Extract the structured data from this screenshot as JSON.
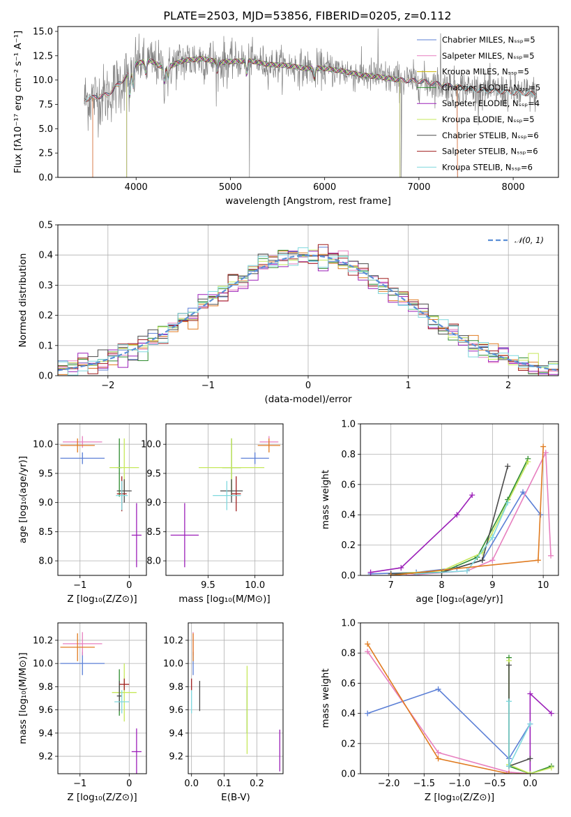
{
  "figure_title": "PLATE=2503, MJD=53856, FIBERID=0205, z=0.112",
  "colors": {
    "chabrier_miles": "#5b7fd6",
    "salpeter_miles": "#e77fbf",
    "kroupa_miles": "#c9b300",
    "chabrier_elodie": "#2e8b2e",
    "salpeter_elodie": "#9b1fb8",
    "kroupa_elodie": "#c6e85a",
    "chabrier_stelib": "#4a4a4a",
    "salpeter_stelib": "#a01e1e",
    "kroupa_stelib": "#7fd8de",
    "data": "#808080",
    "orange": "#e07b20",
    "normal": "#5b8fd6"
  },
  "chart_data": [
    {
      "id": "spectrum",
      "type": "line",
      "title": "PLATE=2503, MJD=53856, FIBERID=0205, z=0.112",
      "xlabel": "wavelength [Angstrom, rest frame]",
      "ylabel": "Flux [fλ10⁻¹⁷ erg cm⁻² s⁻¹ A⁻¹]",
      "xlim": [
        3170,
        8480
      ],
      "ylim": [
        0,
        15.5
      ],
      "xticks": [
        4000,
        5000,
        6000,
        7000,
        8000
      ],
      "yticks": [
        0.0,
        2.5,
        5.0,
        7.5,
        10.0,
        12.5,
        15.0
      ],
      "xtick_labels": [
        "4000",
        "5000",
        "6000",
        "7000",
        "8000"
      ],
      "ytick_labels": [
        "0.0",
        "2.5",
        "5.0",
        "7.5",
        "10.0",
        "12.5",
        "15.0"
      ],
      "grid": false,
      "legend_position": "top-right",
      "legend": [
        "Chabrier MILES, Nₛₛₚ=5",
        "Salpeter MILES, Nₛₛₚ=5",
        "Kroupa MILES, Nₛₛₚ=5",
        "Chabrier ELODIE, Nₛₛₚ=5",
        "Salpeter ELODIE, Nₛₛₚ=4",
        "Kroupa ELODIE, Nₛₛₚ=5",
        "Chabrier STELIB, Nₛₛₚ=6",
        "Salpeter STELIB, Nₛₛₚ=6",
        "Kroupa STELIB, Nₛₛₚ=6"
      ],
      "continuum": {
        "x": [
          3450,
          3700,
          3900,
          4000,
          4150,
          4300,
          4500,
          4700,
          4900,
          5000,
          5200,
          5400,
          5600,
          5800,
          6000,
          6200,
          6400,
          6600,
          6800,
          7000,
          7200,
          7400,
          7600,
          7800,
          8000,
          8250
        ],
        "y": [
          8.0,
          8.5,
          10.4,
          11.7,
          12.0,
          11.2,
          12.0,
          12.2,
          11.8,
          11.9,
          12.0,
          11.6,
          11.5,
          11.2,
          11.2,
          10.9,
          10.5,
          10.3,
          10.0,
          9.9,
          9.6,
          9.3,
          9.0,
          8.9,
          8.7,
          8.6
        ]
      },
      "model_extents": {
        "Chabrier MILES": [
          3540,
          7410
        ],
        "Salpeter MILES": [
          3540,
          7410
        ],
        "Kroupa MILES": [
          3540,
          7410
        ],
        "Chabrier ELODIE": [
          3900,
          6800
        ],
        "Salpeter ELODIE": [
          3900,
          6800
        ],
        "Kroupa ELODIE": [
          3900,
          6800
        ],
        "Chabrier STELIB": [
          3450,
          8250
        ],
        "Salpeter STELIB": [
          3450,
          8250
        ],
        "Kroupa STELIB": [
          3450,
          8250
        ]
      }
    },
    {
      "id": "residuals",
      "type": "step",
      "xlabel": "(data-model)/error",
      "ylabel": "Normed distribution",
      "xlim": [
        -2.5,
        2.5
      ],
      "ylim": [
        0,
        0.5
      ],
      "xticks": [
        -2,
        -1,
        0,
        1,
        2
      ],
      "yticks": [
        0.0,
        0.1,
        0.2,
        0.3,
        0.4,
        0.5
      ],
      "xtick_labels": [
        "−2",
        "−1",
        "0",
        "1",
        "2"
      ],
      "ytick_labels": [
        "0.0",
        "0.1",
        "0.2",
        "0.3",
        "0.4",
        "0.5"
      ],
      "grid": true,
      "bin_width": 0.1,
      "legend": [
        "𝒩(0, 1)"
      ],
      "legend_position": "top-right"
    },
    {
      "id": "age_vs_z",
      "type": "errorbar",
      "xlabel": "Z [log₁₀(Z/Z⊙)]",
      "ylabel": "age  [log₁₀(age/yr)]",
      "xlim": [
        -1.45,
        0.35
      ],
      "ylim": [
        7.75,
        10.35
      ],
      "xticks": [
        -1,
        0
      ],
      "yticks": [
        8.0,
        8.5,
        9.0,
        9.5,
        10.0
      ],
      "xtick_labels": [
        "−1",
        "0"
      ],
      "ytick_labels": [
        "8.0",
        "8.5",
        "9.0",
        "9.5",
        "10.0"
      ],
      "grid": true,
      "points": [
        {
          "model": "Chabrier MILES",
          "x": -0.95,
          "y": 9.76,
          "xerr": 0.45,
          "yerr": 0.1
        },
        {
          "model": "Salpeter MILES",
          "x": -0.95,
          "y": 10.04,
          "xerr": 0.4,
          "yerr": 0.1
        },
        {
          "model": "Kroupa MILES",
          "x": -1.05,
          "y": 9.98,
          "xerr": 0.35,
          "yerr": 0.12
        },
        {
          "model": "Chabrier ELODIE",
          "x": -0.2,
          "y": 9.6,
          "xerr": 0.05,
          "yerr": 0.5
        },
        {
          "model": "Salpeter ELODIE",
          "x": 0.15,
          "y": 8.44,
          "xerr": 0.1,
          "yerr": 0.55
        },
        {
          "model": "Kroupa ELODIE",
          "x": -0.1,
          "y": 9.6,
          "xerr": 0.3,
          "yerr": 0.5
        },
        {
          "model": "Chabrier STELIB",
          "x": -0.1,
          "y": 9.2,
          "xerr": 0.15,
          "yerr": 0.2
        },
        {
          "model": "Salpeter STELIB",
          "x": -0.15,
          "y": 9.15,
          "xerr": 0.1,
          "yerr": 0.3
        },
        {
          "model": "Kroupa STELIB",
          "x": -0.15,
          "y": 9.12,
          "xerr": 0.12,
          "yerr": 0.25
        }
      ]
    },
    {
      "id": "age_vs_mass",
      "type": "errorbar",
      "xlabel": "mass [log₁₀(M/M⊙)]",
      "ylabel": "",
      "xlim": [
        9.05,
        10.3
      ],
      "ylim": [
        7.75,
        10.35
      ],
      "xticks": [
        9.5,
        10.0
      ],
      "yticks": [
        8.0,
        8.5,
        9.0,
        9.5,
        10.0
      ],
      "xtick_labels": [
        "9.5",
        "10.0"
      ],
      "ytick_labels": [
        "8.0",
        "8.5",
        "9.0",
        "9.5",
        "10.0"
      ],
      "grid": true,
      "points": [
        {
          "model": "Chabrier MILES",
          "x": 10.0,
          "y": 9.76,
          "xerr": 0.15,
          "yerr": 0.1
        },
        {
          "model": "Salpeter MILES",
          "x": 10.15,
          "y": 10.04,
          "xerr": 0.1,
          "yerr": 0.1
        },
        {
          "model": "Kroupa MILES",
          "x": 10.15,
          "y": 9.98,
          "xerr": 0.12,
          "yerr": 0.12
        },
        {
          "model": "Chabrier ELODIE",
          "x": 9.75,
          "y": 9.6,
          "xerr": 0.1,
          "yerr": 0.5
        },
        {
          "model": "Salpeter ELODIE",
          "x": 9.25,
          "y": 8.44,
          "xerr": 0.15,
          "yerr": 0.55
        },
        {
          "model": "Kroupa ELODIE",
          "x": 9.75,
          "y": 9.6,
          "xerr": 0.35,
          "yerr": 0.5
        },
        {
          "model": "Chabrier STELIB",
          "x": 9.75,
          "y": 9.2,
          "xerr": 0.12,
          "yerr": 0.2
        },
        {
          "model": "Salpeter STELIB",
          "x": 9.8,
          "y": 9.15,
          "xerr": 0.05,
          "yerr": 0.3
        },
        {
          "model": "Kroupa STELIB",
          "x": 9.7,
          "y": 9.12,
          "xerr": 0.15,
          "yerr": 0.25
        }
      ]
    },
    {
      "id": "weight_vs_age",
      "type": "line",
      "xlabel": "age  [log₁₀(age/yr)]",
      "ylabel": "mass weight",
      "xlim": [
        6.4,
        10.3
      ],
      "ylim": [
        0,
        1.0
      ],
      "xticks": [
        7,
        8,
        9,
        10
      ],
      "yticks": [
        0.0,
        0.2,
        0.4,
        0.6,
        0.8,
        1.0
      ],
      "xtick_labels": [
        "7",
        "8",
        "9",
        "10"
      ],
      "ytick_labels": [
        "0.0",
        "0.2",
        "0.4",
        "0.6",
        "0.8",
        "1.0"
      ],
      "grid": true,
      "series": [
        {
          "model": "Chabrier MILES",
          "x": [
            6.6,
            7.5,
            8.3,
            8.8,
            9.6,
            9.95
          ],
          "y": [
            0.01,
            0.02,
            0.05,
            0.1,
            0.55,
            0.4
          ]
        },
        {
          "model": "Salpeter MILES",
          "x": [
            7.3,
            8.5,
            9.0,
            10.05,
            10.15
          ],
          "y": [
            0.0,
            0.03,
            0.1,
            0.81,
            0.13
          ]
        },
        {
          "model": "Chabrier ELODIE",
          "x": [
            7.0,
            8.0,
            8.7,
            9.3,
            9.7
          ],
          "y": [
            0.01,
            0.02,
            0.12,
            0.5,
            0.77
          ]
        },
        {
          "model": "Kroupa ELODIE",
          "x": [
            7.0,
            8.0,
            8.8,
            9.7
          ],
          "y": [
            0.01,
            0.03,
            0.15,
            0.75
          ]
        },
        {
          "model": "Chabrier STELIB",
          "x": [
            7.0,
            8.0,
            8.8,
            9.3
          ],
          "y": [
            0.01,
            0.02,
            0.1,
            0.72
          ]
        },
        {
          "model": "Salpeter ELODIE",
          "x": [
            6.6,
            7.2,
            8.3,
            8.6
          ],
          "y": [
            0.02,
            0.05,
            0.4,
            0.53
          ]
        },
        {
          "model": "Kroupa STELIB",
          "x": [
            7.5,
            8.5,
            9.0,
            9.3
          ],
          "y": [
            0.01,
            0.03,
            0.25,
            0.48
          ]
        },
        {
          "model": "Kroupa MILES",
          "x": [
            7.0,
            9.9,
            10.0
          ],
          "y": [
            0.0,
            0.1,
            0.85
          ]
        }
      ]
    },
    {
      "id": "mass_vs_z",
      "type": "errorbar",
      "xlabel": "Z [log₁₀(Z/Z⊙)]",
      "ylabel": "mass [log₁₀(M/M⊙)]",
      "xlim": [
        -1.45,
        0.35
      ],
      "ylim": [
        9.05,
        10.35
      ],
      "xticks": [
        -1,
        0
      ],
      "yticks": [
        9.2,
        9.4,
        9.6,
        9.8,
        10.0,
        10.2
      ],
      "xtick_labels": [
        "−1",
        "0"
      ],
      "ytick_labels": [
        "9.2",
        "9.4",
        "9.6",
        "9.8",
        "10.0",
        "10.2"
      ],
      "grid": true,
      "points": [
        {
          "model": "Chabrier MILES",
          "x": -0.95,
          "y": 10.0,
          "xerr": 0.45,
          "yerr": 0.1
        },
        {
          "model": "Salpeter MILES",
          "x": -0.95,
          "y": 10.17,
          "xerr": 0.4,
          "yerr": 0.1
        },
        {
          "model": "Kroupa MILES",
          "x": -1.05,
          "y": 10.14,
          "xerr": 0.35,
          "yerr": 0.12
        },
        {
          "model": "Chabrier ELODIE",
          "x": -0.2,
          "y": 9.75,
          "xerr": 0.05,
          "yerr": 0.2
        },
        {
          "model": "Salpeter ELODIE",
          "x": 0.15,
          "y": 9.24,
          "xerr": 0.1,
          "yerr": 0.2
        },
        {
          "model": "Kroupa ELODIE",
          "x": -0.1,
          "y": 9.75,
          "xerr": 0.25,
          "yerr": 0.25
        },
        {
          "model": "Chabrier STELIB",
          "x": -0.2,
          "y": 9.72,
          "xerr": 0.05,
          "yerr": 0.13
        },
        {
          "model": "Salpeter STELIB",
          "x": -0.1,
          "y": 9.82,
          "xerr": 0.1,
          "yerr": 0.05
        },
        {
          "model": "Kroupa STELIB",
          "x": -0.15,
          "y": 9.67,
          "xerr": 0.15,
          "yerr": 0.1
        }
      ]
    },
    {
      "id": "mass_vs_ebv",
      "type": "errorbar",
      "xlabel": "E(B-V)",
      "ylabel": "",
      "xlim": [
        -0.01,
        0.28
      ],
      "ylim": [
        9.05,
        10.35
      ],
      "xticks": [
        0.0,
        0.1,
        0.2
      ],
      "yticks": [
        9.2,
        9.4,
        9.6,
        9.8,
        10.0,
        10.2
      ],
      "xtick_labels": [
        "0.0",
        "0.1",
        "0.2"
      ],
      "ytick_labels": [
        "9.2",
        "9.4",
        "9.6",
        "9.8",
        "10.0",
        "10.2"
      ],
      "grid": true,
      "points": [
        {
          "model": "Chabrier MILES",
          "x": 0.005,
          "y": 10.0,
          "xerr": 0,
          "yerr": 0.1
        },
        {
          "model": "Salpeter MILES",
          "x": 0.005,
          "y": 10.17,
          "xerr": 0,
          "yerr": 0.1
        },
        {
          "model": "Kroupa MILES",
          "x": 0.005,
          "y": 10.14,
          "xerr": 0,
          "yerr": 0.12
        },
        {
          "model": "Chabrier ELODIE",
          "x": 0.17,
          "y": 9.6,
          "xerr": 0,
          "yerr": 0.2
        },
        {
          "model": "Salpeter ELODIE",
          "x": 0.27,
          "y": 9.25,
          "xerr": 0,
          "yerr": 0.18
        },
        {
          "model": "Kroupa ELODIE",
          "x": 0.17,
          "y": 9.6,
          "xerr": 0,
          "yerr": 0.38
        },
        {
          "model": "Chabrier STELIB",
          "x": 0.025,
          "y": 9.72,
          "xerr": 0,
          "yerr": 0.13
        },
        {
          "model": "Salpeter STELIB",
          "x": 0.0,
          "y": 9.82,
          "xerr": 0,
          "yerr": 0.05
        },
        {
          "model": "Kroupa STELIB",
          "x": 0.0,
          "y": 9.67,
          "xerr": 0,
          "yerr": 0.1
        }
      ]
    },
    {
      "id": "weight_vs_z",
      "type": "line",
      "xlabel": "Z [log₁₀(Z/Z⊙)]",
      "ylabel": "mass weight",
      "xlim": [
        -2.4,
        0.4
      ],
      "ylim": [
        0,
        1.0
      ],
      "xticks": [
        -2.0,
        -1.5,
        -1.0,
        -0.5,
        0.0
      ],
      "yticks": [
        0.0,
        0.2,
        0.4,
        0.6,
        0.8,
        1.0
      ],
      "xtick_labels": [
        "−2.0",
        "−1.5",
        "−1.0",
        "−0.5",
        "0.0"
      ],
      "ytick_labels": [
        "0.0",
        "0.2",
        "0.4",
        "0.6",
        "0.8",
        "1.0"
      ],
      "grid": true,
      "series": [
        {
          "model": "Chabrier MILES",
          "x": [
            -2.3,
            -1.3,
            -0.3,
            0.0
          ],
          "y": [
            0.4,
            0.56,
            0.1,
            0.33
          ]
        },
        {
          "model": "Salpeter MILES",
          "x": [
            -2.3,
            -1.3,
            -0.3,
            0.0
          ],
          "y": [
            0.81,
            0.14,
            0.01,
            0.0
          ]
        },
        {
          "model": "Kroupa MILES",
          "x": [
            -2.3,
            -1.3,
            -0.3,
            0.0
          ],
          "y": [
            0.86,
            0.1,
            0.0,
            0.0
          ]
        },
        {
          "model": "Salpeter ELODIE",
          "x": [
            0.0,
            0.0,
            0.3
          ],
          "y": [
            0.0,
            0.53,
            0.4
          ]
        },
        {
          "model": "Chabrier ELODIE",
          "x": [
            -0.3,
            -0.3,
            0.0,
            0.3
          ],
          "y": [
            0.77,
            0.05,
            0.0,
            0.05
          ]
        },
        {
          "model": "Kroupa ELODIE",
          "x": [
            -0.3,
            -0.3,
            0.0,
            0.3
          ],
          "y": [
            0.75,
            0.06,
            0.0,
            0.04
          ]
        },
        {
          "model": "Chabrier STELIB",
          "x": [
            -0.3,
            -0.3,
            0.0
          ],
          "y": [
            0.72,
            0.05,
            0.1
          ]
        },
        {
          "model": "Kroupa STELIB",
          "x": [
            -0.3,
            -0.3,
            0.0
          ],
          "y": [
            0.48,
            0.05,
            0.33
          ]
        }
      ]
    }
  ]
}
